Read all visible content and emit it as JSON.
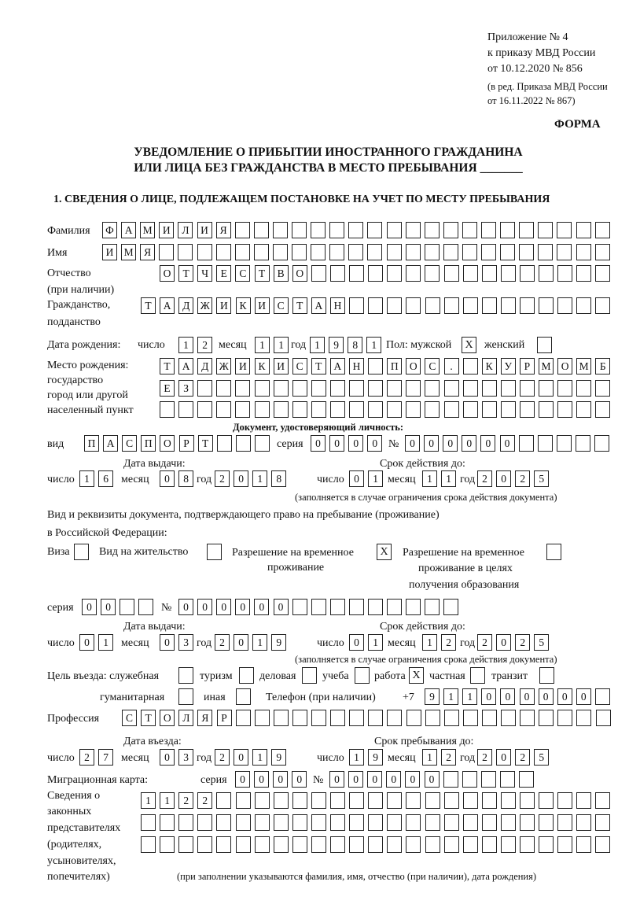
{
  "header": {
    "line1": "Приложение № 4",
    "line2": "к приказу МВД России",
    "line3": "от 10.12.2020 № 856",
    "line4": "(в ред. Приказа МВД России",
    "line5": "от 16.11.2022 № 867)",
    "form_label": "ФОРМА",
    "title1": "УВЕДОМЛЕНИЕ О ПРИБЫТИИ ИНОСТРАННОГО ГРАЖДАНИНА",
    "title2": "ИЛИ ЛИЦА БЕЗ ГРАЖДАНСТВА В МЕСТО ПРЕБЫВАНИЯ _______",
    "section1": "1. СВЕДЕНИЯ О ЛИЦЕ, ПОДЛЕЖАЩЕМ ПОСТАНОВКЕ НА УЧЕТ ПО МЕСТУ ПРЕБЫВАНИЯ"
  },
  "labels": {
    "surname": "Фамилия",
    "name": "Имя",
    "patronymic": "Отчество",
    "patronymic_note": "(при наличии)",
    "citizenship": "Гражданство,",
    "citizenship2": "подданство",
    "birth_date": "Дата рождения:",
    "day": "число",
    "month": "месяц",
    "year": "год",
    "sex": "Пол: мужской",
    "female": "женский",
    "birthplace1": "Место рождения:",
    "birthplace2": "государство",
    "birthplace3": "город или другой",
    "birthplace4": "населенный пункт",
    "id_doc": "Документ, удостоверяющий личность:",
    "kind": "вид",
    "series": "серия",
    "number": "№",
    "issue_date": "Дата выдачи:",
    "valid_until": "Срок действия до:",
    "validity_note": "(заполняется в случае ограничения срока действия документа)",
    "right_doc1": "Вид и реквизиты документа, подтверждающего право на пребывание (проживание)",
    "right_doc2": "в Российской Федерации:",
    "visa": "Виза",
    "residence": "Вид на жительство",
    "trp1": "Разрешение на временное",
    "trp2": "проживание",
    "trp_edu1": "Разрешение на временное",
    "trp_edu2": "проживание в целях",
    "trp_edu3": "получения образования",
    "purpose": "Цель въезда: служебная",
    "tourism": "туризм",
    "business": "деловая",
    "study": "учеба",
    "work": "работа",
    "private": "частная",
    "transit": "транзит",
    "humanitarian": "гуманитарная",
    "other": "иная",
    "phone": "Телефон (при наличии)",
    "phone_prefix": "+7",
    "profession": "Профессия",
    "entry_date": "Дата въезда:",
    "stay_until": "Срок пребывания до:",
    "migration_card": "Миграционная карта:",
    "reps1": "Сведения о",
    "reps2": "законных",
    "reps3": "представителях",
    "reps4": "(родителях,",
    "reps5": "усыновителях,",
    "reps6": "попечителях)",
    "reps_note": "(при заполнении указываются фамилия, имя, отчество (при наличии), дата рождения)"
  },
  "values": {
    "surname": "ФАМИЛИЯ",
    "name": "ИМЯ",
    "patronymic": "ОТЧЕСТВО",
    "citizenship": "ТАДЖИКИСТАН",
    "birth_day": "12",
    "birth_month": "11",
    "birth_year": "1981",
    "sex_male": "X",
    "sex_female": "",
    "birthplace_row1": "ТАДЖИКИСТАН ПОС. КУРМОМБ",
    "birthplace_row2": "ЕЗ",
    "birthplace_row3": "",
    "id_kind": "ПАСПОРТ",
    "id_series": "0000",
    "id_number": "000000",
    "id_issue_day": "16",
    "id_issue_month": "08",
    "id_issue_year": "2018",
    "id_valid_day": "01",
    "id_valid_month": "11",
    "id_valid_year": "2025",
    "visa": "",
    "residence": "",
    "trp": "X",
    "trp_edu": "",
    "rd_series": "00",
    "rd_number": "000000",
    "rd_issue_day": "01",
    "rd_issue_month": "03",
    "rd_issue_year": "2019",
    "rd_valid_day": "01",
    "rd_valid_month": "12",
    "rd_valid_year": "2025",
    "p_service": "",
    "p_tourism": "",
    "p_business": "",
    "p_study": "",
    "p_work": "X",
    "p_private": "",
    "p_transit": "",
    "p_humanitarian": "",
    "p_other": "",
    "phone": "911000000",
    "profession": "СТОЛЯР",
    "entry_day": "27",
    "entry_month": "03",
    "entry_year": "2019",
    "stay_day": "19",
    "stay_month": "12",
    "stay_year": "2025",
    "mc_series": "0000",
    "mc_number": "000000",
    "reps_row1": "1122",
    "reps_row2": "",
    "reps_row3": ""
  }
}
